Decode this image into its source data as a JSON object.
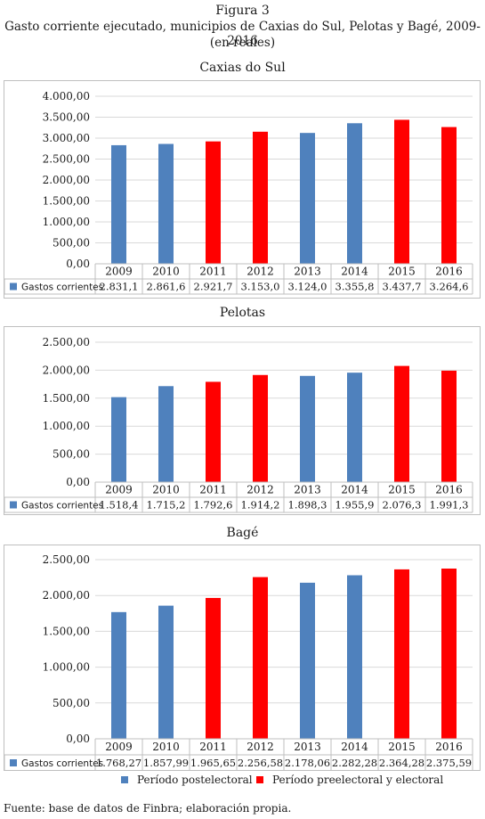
{
  "figure": {
    "label": "Figura 3",
    "title": "Gasto corriente ejecutado, municipios de Caxias do Sul, Pelotas y Bagé, 2009-2016",
    "unit": "(en reales)",
    "source": "Fuente: base de datos de Finbra; elaboración propia."
  },
  "colors": {
    "postelectoral": "#4f81bd",
    "preelectoral": "#ff0000",
    "grid": "#d9d9d9"
  },
  "legend": {
    "items": [
      {
        "label": "Período postelectoral",
        "color": "#4f81bd"
      },
      {
        "label": "Período preelectoral y electoral",
        "color": "#ff0000"
      }
    ]
  },
  "chart_data": [
    {
      "type": "bar",
      "title": "Caxias do Sul",
      "categories": [
        "2009",
        "2010",
        "2011",
        "2012",
        "2013",
        "2014",
        "2015",
        "2016"
      ],
      "series": [
        {
          "name": "Gastos corrientes",
          "values": [
            2831.1,
            2861.6,
            2921.7,
            3153.0,
            3124.0,
            3355.8,
            3437.7,
            3264.6
          ],
          "labels": [
            "2.831,1",
            "2.861,6",
            "2.921,7",
            "3.153,0",
            "3.124,0",
            "3.355,8",
            "3.437,7",
            "3.264,6"
          ]
        }
      ],
      "bar_colors": [
        "#4f81bd",
        "#4f81bd",
        "#ff0000",
        "#ff0000",
        "#4f81bd",
        "#4f81bd",
        "#ff0000",
        "#ff0000"
      ],
      "ylim": [
        0,
        4000
      ],
      "yticks": [
        0,
        500,
        1000,
        1500,
        2000,
        2500,
        3000,
        3500,
        4000
      ],
      "ytick_labels": [
        "0,00",
        "500,00",
        "1.000,00",
        "1.500,00",
        "2.000,00",
        "2.500,00",
        "3.000,00",
        "3.500,00",
        "4.000,00"
      ],
      "grid": true,
      "data_table": true
    },
    {
      "type": "bar",
      "title": "Pelotas",
      "categories": [
        "2009",
        "2010",
        "2011",
        "2012",
        "2013",
        "2014",
        "2015",
        "2016"
      ],
      "series": [
        {
          "name": "Gastos corrientes",
          "values": [
            1518.4,
            1715.2,
            1792.6,
            1914.2,
            1898.3,
            1955.9,
            2076.3,
            1991.3
          ],
          "labels": [
            "1.518,4",
            "1.715,2",
            "1.792,6",
            "1.914,2",
            "1.898,3",
            "1.955,9",
            "2.076,3",
            "1.991,3"
          ]
        }
      ],
      "bar_colors": [
        "#4f81bd",
        "#4f81bd",
        "#ff0000",
        "#ff0000",
        "#4f81bd",
        "#4f81bd",
        "#ff0000",
        "#ff0000"
      ],
      "ylim": [
        0,
        2500
      ],
      "yticks": [
        0,
        500,
        1000,
        1500,
        2000,
        2500
      ],
      "ytick_labels": [
        "0,00",
        "500,00",
        "1.000,00",
        "1.500,00",
        "2.000,00",
        "2.500,00"
      ],
      "grid": true,
      "data_table": true
    },
    {
      "type": "bar",
      "title": "Bagé",
      "categories": [
        "2009",
        "2010",
        "2011",
        "2012",
        "2013",
        "2014",
        "2015",
        "2016"
      ],
      "series": [
        {
          "name": "Gastos corrientes",
          "values": [
            1768.27,
            1857.99,
            1965.65,
            2256.58,
            2178.06,
            2282.28,
            2364.28,
            2375.59
          ],
          "labels": [
            "1.768,27",
            "1.857,99",
            "1.965,65",
            "2.256,58",
            "2.178,06",
            "2.282,28",
            "2.364,28",
            "2.375,59"
          ]
        }
      ],
      "bar_colors": [
        "#4f81bd",
        "#4f81bd",
        "#ff0000",
        "#ff0000",
        "#4f81bd",
        "#4f81bd",
        "#ff0000",
        "#ff0000"
      ],
      "ylim": [
        0,
        2500
      ],
      "yticks": [
        0,
        500,
        1000,
        1500,
        2000,
        2500
      ],
      "ytick_labels": [
        "0,00",
        "500,00",
        "1.000,00",
        "1.500,00",
        "2.000,00",
        "2.500,00"
      ],
      "grid": true,
      "data_table": true
    }
  ]
}
